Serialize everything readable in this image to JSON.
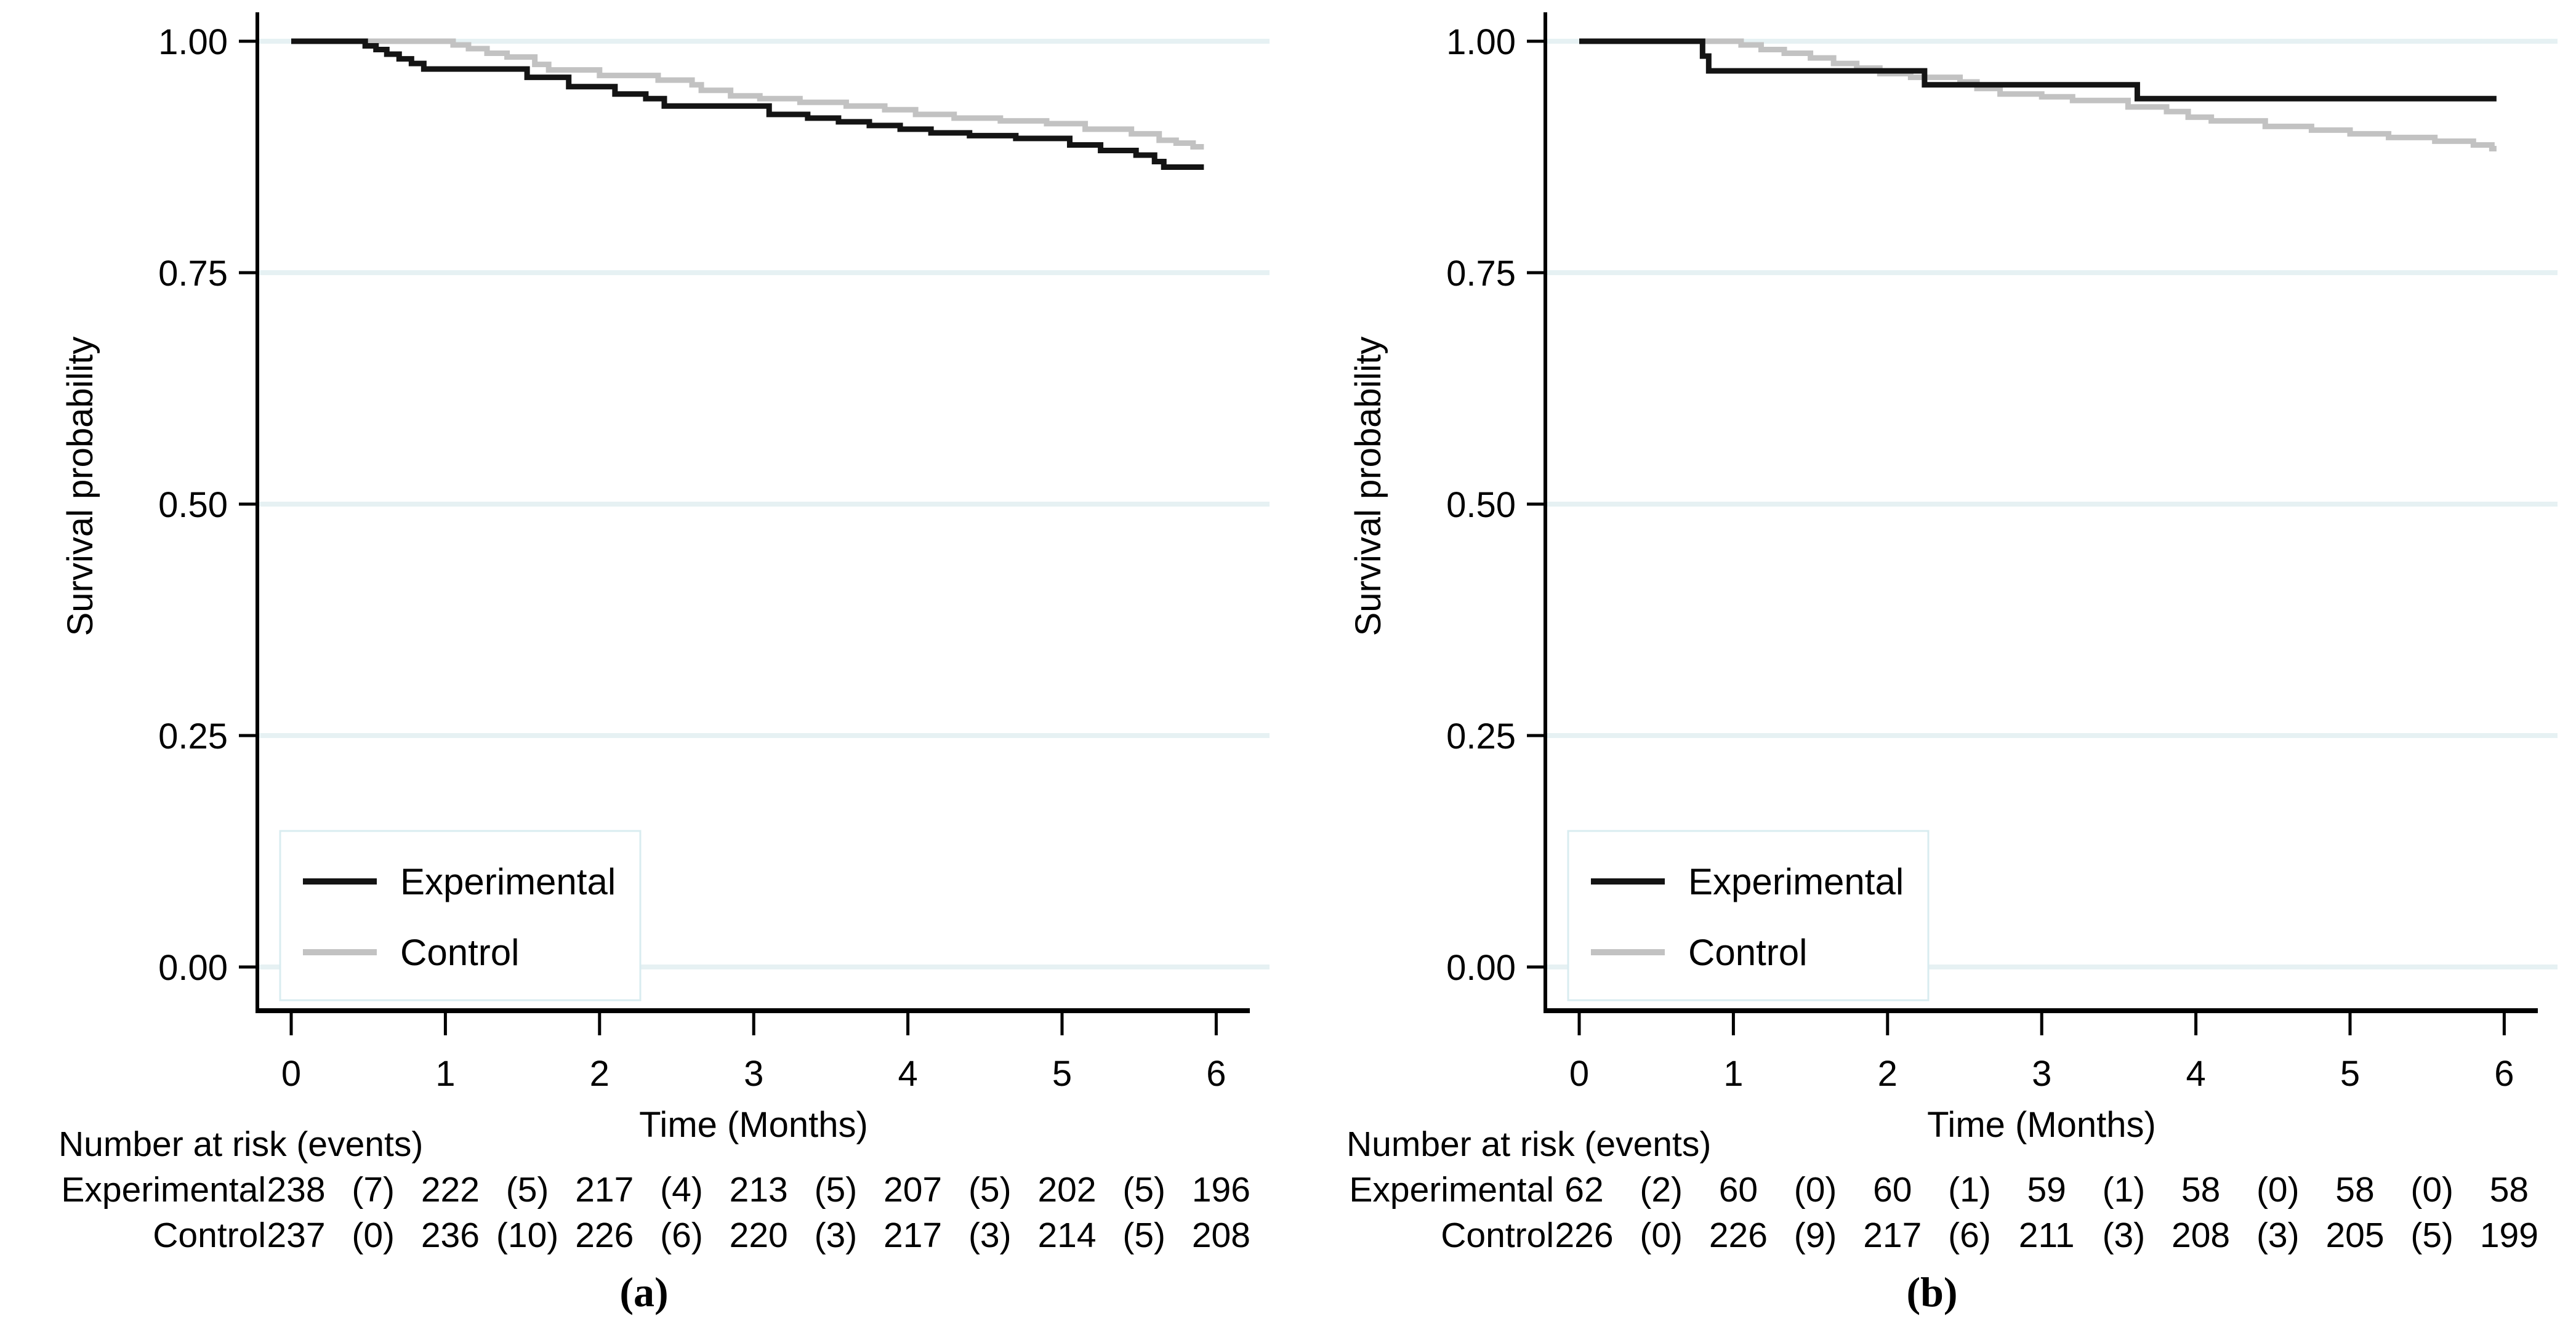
{
  "figure": {
    "panels": [
      {
        "id": "a",
        "panel_label": "(a)",
        "ylabel": "Survival probability",
        "xlabel": "Time (Months)",
        "ytick_labels": [
          "1.00",
          "0.75",
          "0.50",
          "0.25",
          "0.00"
        ],
        "ytick_values": [
          1.0,
          0.75,
          0.5,
          0.25,
          0.0
        ],
        "xtick_labels": [
          "0",
          "1",
          "2",
          "3",
          "4",
          "5",
          "6"
        ],
        "xtick_values": [
          0,
          1,
          2,
          3,
          4,
          5,
          6
        ],
        "legend": [
          {
            "label": "Experimental",
            "color": "#141414"
          },
          {
            "label": "Control",
            "color": "#c2c2c2"
          }
        ],
        "risk_table": {
          "title": "Number at risk (events)",
          "rows": [
            {
              "label": "Experimental",
              "cells": [
                "238",
                "(7)",
                "222",
                "(5)",
                "217",
                "(4)",
                "213",
                "(5)",
                "207",
                "(5)",
                "202",
                "(5)",
                "196"
              ]
            },
            {
              "label": "Control",
              "cells": [
                "237",
                "(0)",
                "236",
                "(10)",
                "226",
                "(6)",
                "220",
                "(3)",
                "217",
                "(3)",
                "214",
                "(5)",
                "208"
              ]
            }
          ]
        }
      },
      {
        "id": "b",
        "panel_label": "(b)",
        "ylabel": "Survival probability",
        "xlabel": "Time (Months)",
        "ytick_labels": [
          "1.00",
          "0.75",
          "0.50",
          "0.25",
          "0.00"
        ],
        "ytick_values": [
          1.0,
          0.75,
          0.5,
          0.25,
          0.0
        ],
        "xtick_labels": [
          "0",
          "1",
          "2",
          "3",
          "4",
          "5",
          "6"
        ],
        "xtick_values": [
          0,
          1,
          2,
          3,
          4,
          5,
          6
        ],
        "legend": [
          {
            "label": "Experimental",
            "color": "#141414"
          },
          {
            "label": "Control",
            "color": "#c2c2c2"
          }
        ],
        "risk_table": {
          "title": "Number at risk (events)",
          "rows": [
            {
              "label": "Experimental",
              "cells": [
                "62",
                "(2)",
                "60",
                "(0)",
                "60",
                "(1)",
                "59",
                "(1)",
                "58",
                "(0)",
                "58",
                "(0)",
                "58"
              ]
            },
            {
              "label": "Control",
              "cells": [
                "226",
                "(0)",
                "226",
                "(9)",
                "217",
                "(6)",
                "211",
                "(3)",
                "208",
                "(3)",
                "205",
                "(5)",
                "199"
              ]
            }
          ]
        }
      }
    ]
  },
  "chart_data": [
    {
      "type": "line",
      "subtype": "kaplan-meier-step",
      "title": "",
      "xlabel": "Time (Months)",
      "ylabel": "Survival probability",
      "xlim": [
        0,
        6
      ],
      "ylim": [
        0.0,
        1.0
      ],
      "grid": "horizontal",
      "legend_position": "lower-left",
      "series": [
        {
          "name": "Experimental",
          "color": "#141414",
          "start": [
            0,
            1.0
          ],
          "end_x": 5.92,
          "steps": [
            [
              0.48,
              0.995
            ],
            [
              0.55,
              0.991
            ],
            [
              0.62,
              0.986
            ],
            [
              0.7,
              0.981
            ],
            [
              0.78,
              0.976
            ],
            [
              0.86,
              0.97
            ],
            [
              1.53,
              0.961
            ],
            [
              1.8,
              0.951
            ],
            [
              2.1,
              0.943
            ],
            [
              2.3,
              0.938
            ],
            [
              2.42,
              0.93
            ],
            [
              3.1,
              0.921
            ],
            [
              3.35,
              0.917
            ],
            [
              3.55,
              0.913
            ],
            [
              3.75,
              0.909
            ],
            [
              3.95,
              0.905
            ],
            [
              4.15,
              0.901
            ],
            [
              4.4,
              0.898
            ],
            [
              4.7,
              0.895
            ],
            [
              5.05,
              0.888
            ],
            [
              5.25,
              0.882
            ],
            [
              5.48,
              0.877
            ],
            [
              5.6,
              0.87
            ],
            [
              5.66,
              0.864
            ]
          ]
        },
        {
          "name": "Control",
          "color": "#c2c2c2",
          "start": [
            0,
            1.0
          ],
          "end_x": 5.92,
          "steps": [
            [
              1.05,
              0.996
            ],
            [
              1.15,
              0.992
            ],
            [
              1.27,
              0.987
            ],
            [
              1.4,
              0.983
            ],
            [
              1.58,
              0.975
            ],
            [
              1.67,
              0.969
            ],
            [
              2.0,
              0.963
            ],
            [
              2.38,
              0.958
            ],
            [
              2.6,
              0.953
            ],
            [
              2.66,
              0.947
            ],
            [
              2.85,
              0.941
            ],
            [
              3.04,
              0.938
            ],
            [
              3.3,
              0.934
            ],
            [
              3.6,
              0.93
            ],
            [
              3.85,
              0.926
            ],
            [
              4.05,
              0.921
            ],
            [
              4.3,
              0.917
            ],
            [
              4.6,
              0.914
            ],
            [
              4.9,
              0.911
            ],
            [
              5.15,
              0.905
            ],
            [
              5.45,
              0.9
            ],
            [
              5.63,
              0.893
            ],
            [
              5.74,
              0.89
            ],
            [
              5.85,
              0.886
            ]
          ]
        }
      ]
    },
    {
      "type": "line",
      "subtype": "kaplan-meier-step",
      "title": "",
      "xlabel": "Time (Months)",
      "ylabel": "Survival probability",
      "xlim": [
        0,
        6
      ],
      "ylim": [
        0.0,
        1.0
      ],
      "grid": "horizontal",
      "legend_position": "lower-left",
      "series": [
        {
          "name": "Experimental",
          "color": "#141414",
          "start": [
            0,
            1.0
          ],
          "end_x": 5.95,
          "steps": [
            [
              0.8,
              0.984
            ],
            [
              0.84,
              0.968
            ],
            [
              2.24,
              0.953
            ],
            [
              3.62,
              0.938
            ]
          ]
        },
        {
          "name": "Control",
          "color": "#c2c2c2",
          "start": [
            0,
            1.0
          ],
          "end_x": 5.95,
          "steps": [
            [
              1.05,
              0.996
            ],
            [
              1.18,
              0.991
            ],
            [
              1.33,
              0.987
            ],
            [
              1.5,
              0.982
            ],
            [
              1.65,
              0.976
            ],
            [
              1.8,
              0.971
            ],
            [
              1.95,
              0.965
            ],
            [
              2.15,
              0.961
            ],
            [
              2.47,
              0.956
            ],
            [
              2.58,
              0.949
            ],
            [
              2.73,
              0.943
            ],
            [
              3.0,
              0.94
            ],
            [
              3.2,
              0.936
            ],
            [
              3.56,
              0.929
            ],
            [
              3.81,
              0.924
            ],
            [
              3.95,
              0.918
            ],
            [
              4.1,
              0.914
            ],
            [
              4.45,
              0.908
            ],
            [
              4.75,
              0.904
            ],
            [
              5.0,
              0.9
            ],
            [
              5.25,
              0.896
            ],
            [
              5.55,
              0.892
            ],
            [
              5.8,
              0.888
            ],
            [
              5.92,
              0.884
            ]
          ]
        }
      ]
    }
  ],
  "colors": {
    "background": "#ffffff",
    "axis": "#000000",
    "text": "#000000",
    "gridline": "#e6f1f3",
    "legend_border": "#d9ecf0",
    "experimental_line": "#141414",
    "control_line": "#c2c2c2"
  }
}
